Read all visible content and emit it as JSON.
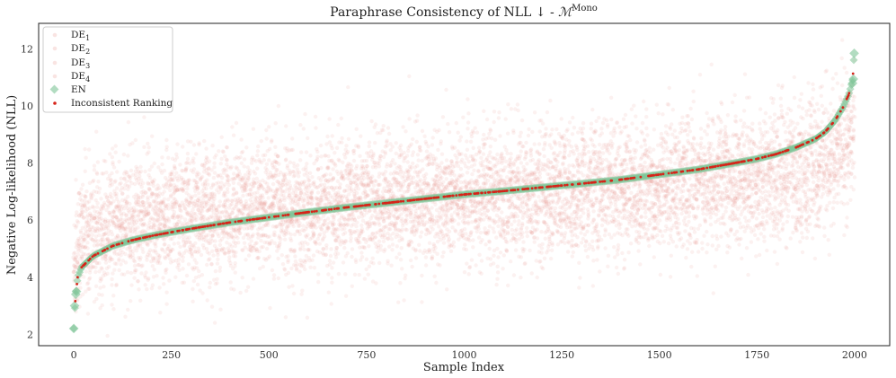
{
  "chart_data": {
    "type": "scatter",
    "title_main": "Paraphrase Consistency of NLL ↓ - ",
    "title_math": "ℳ",
    "title_sup": "Mono",
    "xlabel": "Sample Index",
    "ylabel": "Negative Log-likelihood (NLL)",
    "xlim": [
      -90,
      2090
    ],
    "ylim": [
      1.6,
      12.9
    ],
    "x_ticks": [
      0,
      250,
      500,
      750,
      1000,
      1250,
      1500,
      1750,
      2000
    ],
    "y_ticks": [
      2,
      4,
      6,
      8,
      10,
      12
    ],
    "grid": false,
    "legend_position": "top-left",
    "n_samples": 2000,
    "legend": [
      {
        "base": "DE",
        "sub": "1"
      },
      {
        "base": "DE",
        "sub": "2"
      },
      {
        "base": "DE",
        "sub": "3"
      },
      {
        "base": "DE",
        "sub": "4"
      },
      {
        "base": "EN",
        "sub": ""
      },
      {
        "base": "Inconsistent Ranking",
        "sub": ""
      }
    ],
    "colors": {
      "de": "#e8958a",
      "en": "#7fc497",
      "inconsistent": "#d62419"
    },
    "en_curve": {
      "x": [
        0,
        5,
        10,
        20,
        50,
        100,
        150,
        200,
        250,
        300,
        400,
        500,
        600,
        700,
        800,
        900,
        1000,
        1100,
        1200,
        1300,
        1400,
        1500,
        1600,
        1700,
        1750,
        1800,
        1850,
        1900,
        1925,
        1950,
        1970,
        1985,
        1995,
        1999
      ],
      "y": [
        2.2,
        3.4,
        4.0,
        4.35,
        4.75,
        5.1,
        5.3,
        5.45,
        5.58,
        5.7,
        5.92,
        6.1,
        6.28,
        6.45,
        6.6,
        6.75,
        6.9,
        7.02,
        7.15,
        7.28,
        7.42,
        7.6,
        7.78,
        8.02,
        8.15,
        8.32,
        8.55,
        8.85,
        9.1,
        9.5,
        9.95,
        10.4,
        10.9,
        11.85
      ]
    },
    "de_scatter": {
      "sigma_base": 1.15,
      "baseline": 6.7,
      "pull": 0.55
    }
  }
}
